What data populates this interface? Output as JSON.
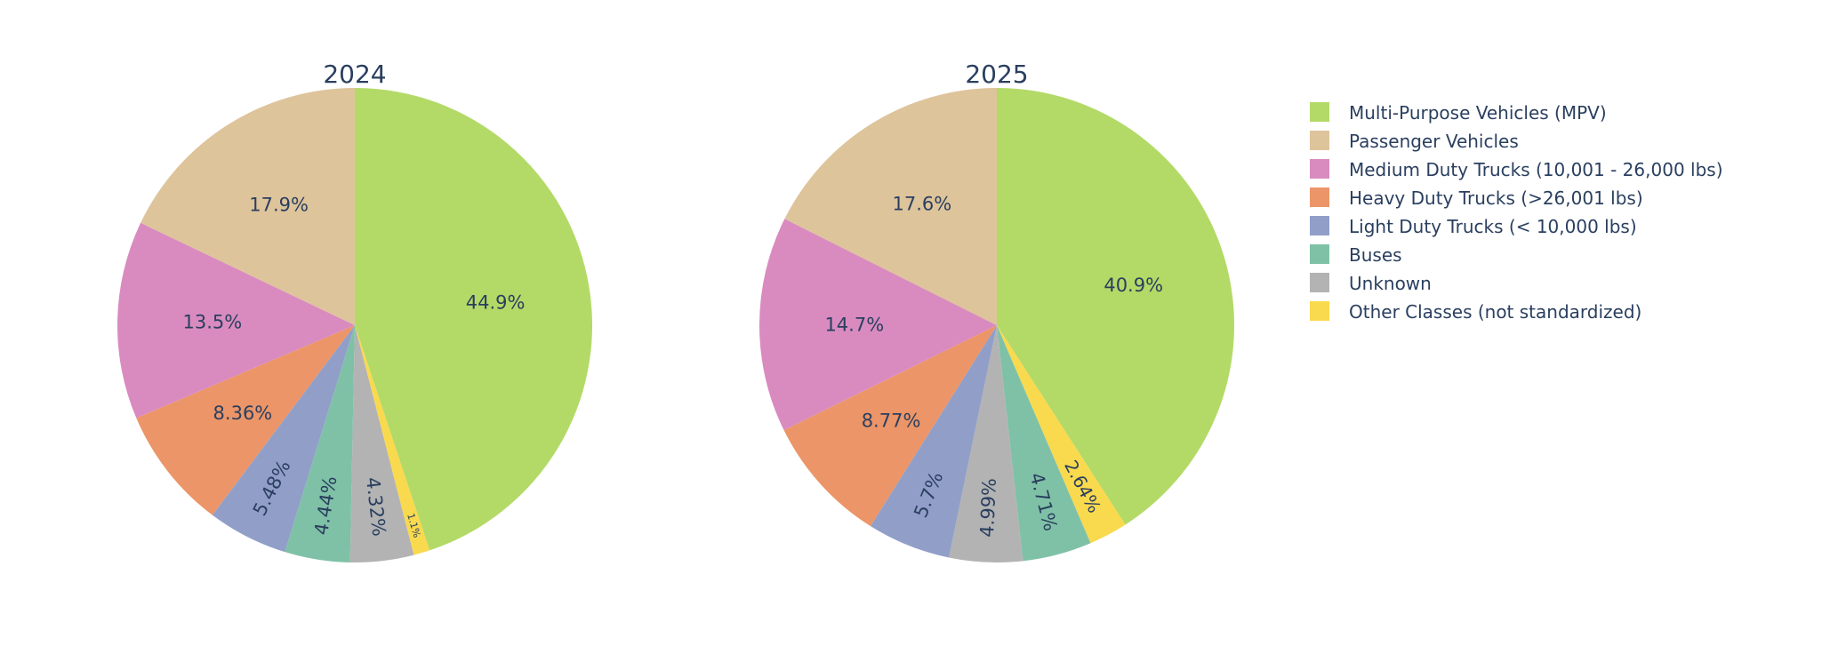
{
  "chart_data": [
    {
      "type": "pie",
      "title": "2024",
      "categories": [
        "Multi-Purpose Vehicles (MPV)",
        "Other Classes (not standardized)",
        "Unknown",
        "Buses",
        "Light Duty Trucks (< 10,000 lbs)",
        "Heavy Duty Trucks (>26,001 lbs)",
        "Medium Duty Trucks (10,001 - 26,000 lbs)",
        "Passenger Vehicles"
      ],
      "values": [
        44.9,
        1.1,
        4.32,
        4.44,
        5.48,
        8.36,
        13.5,
        17.9
      ],
      "labels": [
        "44.9%",
        "1.1%",
        "4.32%",
        "4.44%",
        "5.48%",
        "8.36%",
        "13.5%",
        "17.9%"
      ]
    },
    {
      "type": "pie",
      "title": "2025",
      "categories": [
        "Multi-Purpose Vehicles (MPV)",
        "Other Classes (not standardized)",
        "Buses",
        "Unknown",
        "Light Duty Trucks (< 10,000 lbs)",
        "Heavy Duty Trucks (>26,001 lbs)",
        "Medium Duty Trucks (10,001 - 26,000 lbs)",
        "Passenger Vehicles"
      ],
      "values": [
        40.9,
        2.64,
        4.71,
        4.99,
        5.7,
        8.77,
        14.7,
        17.6
      ],
      "labels": [
        "40.9%",
        "2.64%",
        "4.71%",
        "4.99%",
        "5.7%",
        "8.77%",
        "14.7%",
        "17.6%"
      ]
    }
  ],
  "legend": {
    "placement": "right",
    "items": [
      {
        "label": "Multi-Purpose Vehicles (MPV)",
        "color": "#b3da67"
      },
      {
        "label": "Passenger Vehicles",
        "color": "#dec49b"
      },
      {
        "label": "Medium Duty Trucks (10,001 - 26,000 lbs)",
        "color": "#d98bbf"
      },
      {
        "label": "Heavy Duty Trucks (>26,001 lbs)",
        "color": "#ec9568"
      },
      {
        "label": "Light Duty Trucks (< 10,000 lbs)",
        "color": "#919fc8"
      },
      {
        "label": "Buses",
        "color": "#7fc1a6"
      },
      {
        "label": "Unknown",
        "color": "#b3b3b3"
      },
      {
        "label": "Other Classes (not standardized)",
        "color": "#f9d94e"
      }
    ]
  }
}
